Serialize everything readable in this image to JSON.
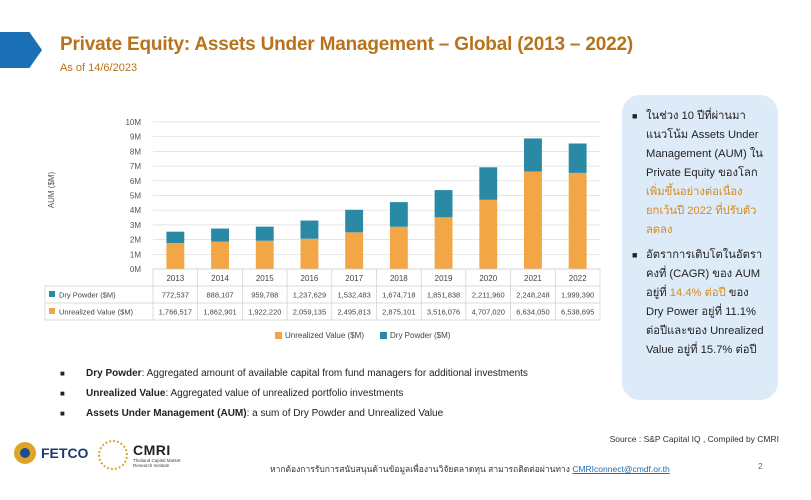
{
  "slide": {
    "title": "Private Equity: Assets Under Management – Global (2013 – 2022)",
    "subtitle": "As of 14/6/2023"
  },
  "chart_data": {
    "type": "bar",
    "stacked": true,
    "categories": [
      "2013",
      "2014",
      "2015",
      "2016",
      "2017",
      "2018",
      "2019",
      "2020",
      "2021",
      "2022"
    ],
    "series": [
      {
        "name": "Unrealized Value ($M)",
        "table_label": "Unrealized Value ($M)",
        "color": "#f2a645",
        "values": [
          1766517,
          1862901,
          1922220,
          2059135,
          2495813,
          2875101,
          3516076,
          4707020,
          6634050,
          6538695
        ],
        "formatted": [
          "1,766,517",
          "1,862,901",
          "1,922,220",
          "2,059,135",
          "2,495,813",
          "2,875,101",
          "3,516,076",
          "4,707,020",
          "6,634,050",
          "6,538,695"
        ]
      },
      {
        "name": "Dry Powder ($M)",
        "table_label": "Dry Powder ($M)",
        "color": "#2a8aa6",
        "values": [
          772537,
          888107,
          959788,
          1237629,
          1532483,
          1674718,
          1851838,
          2211960,
          2248248,
          1999390
        ],
        "formatted": [
          "772,537",
          "888,107",
          "959,788",
          "1,237,629",
          "1,532,483",
          "1,674,718",
          "1,851,838",
          "2,211,960",
          "2,248,248",
          "1,999,390"
        ]
      }
    ],
    "ylabel": "AUM ($M)",
    "ylim": [
      0,
      10000000
    ],
    "yticks": [
      "0M",
      "1M",
      "2M",
      "3M",
      "4M",
      "5M",
      "6M",
      "7M",
      "8M",
      "9M",
      "10M"
    ],
    "grid": true,
    "legend": "bottom",
    "data_table": true
  },
  "info_box": {
    "item1": {
      "part1": "ในช่วง 10 ปีที่ผ่านมา แนวโน้ม Assets Under Management (AUM) ใน Private Equity ของโลก",
      "highlight": "เพิ่มขึ้นอย่างต่อเนื่อง ยกเว้นปี 2022 ที่ปรับตัวลดลง"
    },
    "item2": {
      "part1": "อัตราการเติบโตในอัตราคงที่ (CAGR) ของ AUM อยู่ที่",
      "highlight": "14.4% ต่อปี",
      "part2": "ของ Dry Power อยู่ที่ 11.1% ต่อปีและของ Unrealized Value อยู่ที่ 15.7% ต่อปี"
    }
  },
  "definitions": [
    {
      "term": "Dry Powder",
      "text": ": Aggregated amount of available capital from fund managers for additional investments"
    },
    {
      "term": "Unrealized Value",
      "text": ": Aggregated value of unrealized portfolio investments"
    },
    {
      "term": "Assets Under Management (AUM)",
      "text": ": a sum of Dry Powder and Unrealized Value"
    }
  ],
  "source": "Source : S&P Capital IQ , Compiled by CMRI",
  "footer": {
    "logo1": "FETCO",
    "logo2": "CMRI",
    "logo2_sub": "Thailand Capital Market Research Institute",
    "note": "หากต้องการรับการสนับสนุนด้านข้อมูลเพื่องานวิจัยตลาดทุน สามารถติดต่อผ่านทาง",
    "email": "CMRIconnect@cmdf.or.th",
    "page": "2"
  }
}
